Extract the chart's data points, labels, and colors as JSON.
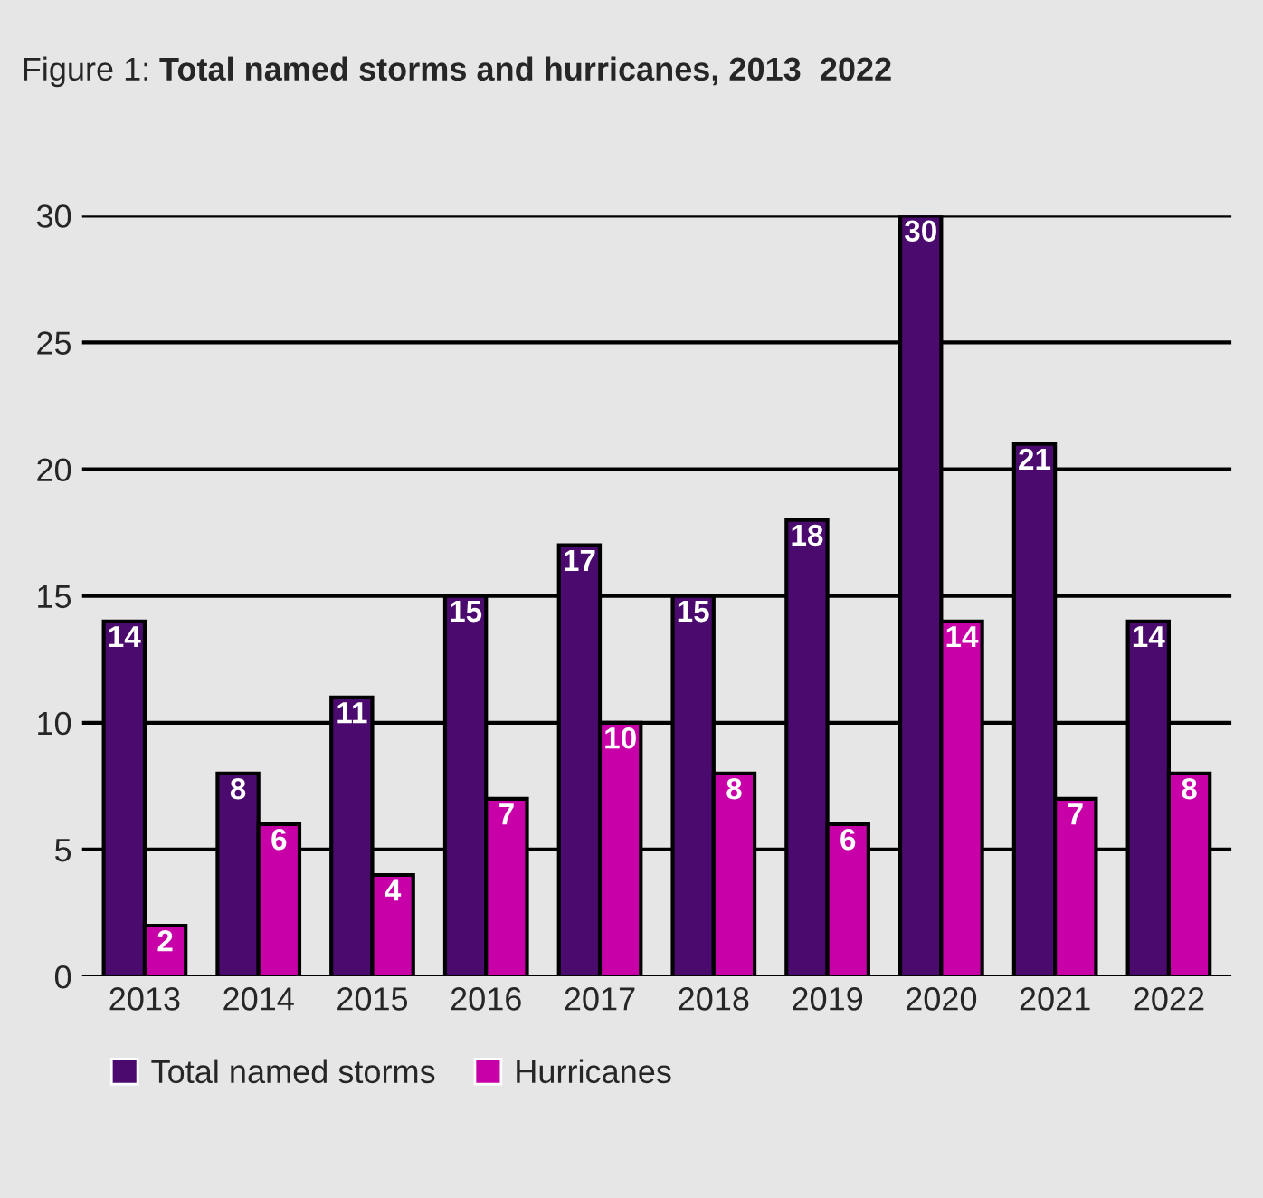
{
  "chart_data": {
    "type": "bar",
    "title": "Figure 1: Total named storms and hurricanes, 2013  2022",
    "categories": [
      "2013",
      "2014",
      "2015",
      "2016",
      "2017",
      "2018",
      "2019",
      "2020",
      "2021",
      "2022"
    ],
    "series": [
      {
        "name": "Total named storms",
        "color": "#4b0a6e",
        "values": [
          14,
          8,
          11,
          15,
          17,
          15,
          18,
          30,
          21,
          14
        ]
      },
      {
        "name": "Hurricanes",
        "color": "#c800a8",
        "values": [
          2,
          6,
          4,
          7,
          10,
          8,
          6,
          14,
          7,
          8
        ]
      }
    ],
    "ylim": [
      0,
      30
    ],
    "yticks": [
      0,
      5,
      10,
      15,
      20,
      25,
      30
    ],
    "grid": "y",
    "legend": "bottom left",
    "data_labels": true
  }
}
